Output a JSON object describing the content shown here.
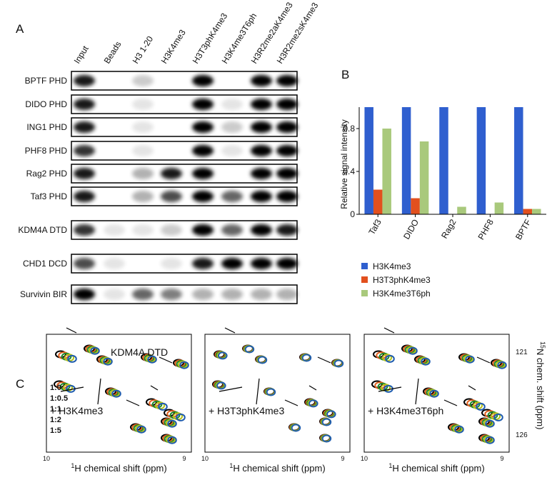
{
  "panel_a": {
    "label": "A",
    "columns": [
      "Input",
      "Beads",
      "H3 1-20",
      "H3K4me3",
      "H3T3phK4me3",
      "H3K4me3T6ph",
      "H3R2me2aK4me3",
      "H3R2me2sK4me3"
    ],
    "rows": [
      "BPTF PHD",
      "DIDO PHD",
      "ING1 PHD",
      "PHF8 PHD",
      "Rag2 PHD",
      "Taf3 PHD",
      "KDM4A DTD",
      "CHD1 DCD",
      "Survivin BIR"
    ]
  },
  "chart_data": {
    "type": "bar",
    "label": "B",
    "y_label": "Relative signal intensity",
    "categories": [
      "Taf3",
      "DIDO",
      "Rag2",
      "PHF8",
      "BPTF"
    ],
    "series": [
      {
        "name": "H3K4me3",
        "color": "#2f5fcf",
        "values": [
          1,
          1,
          1,
          1,
          1
        ]
      },
      {
        "name": "H3T3phK4me3",
        "color": "#e2501e",
        "values": [
          0.23,
          0.15,
          0,
          0,
          0.05
        ]
      },
      {
        "name": "H3K4me3T6ph",
        "color": "#a9c97c",
        "values": [
          0.8,
          0.68,
          0.07,
          0.11,
          0.05
        ]
      }
    ],
    "ylim": [
      0,
      1
    ],
    "yticks": [
      0,
      0.4,
      0.8
    ]
  },
  "panel_c": {
    "label": "C",
    "protein": "KDM4A DTD",
    "peptides": [
      "+ H3K4me3",
      "+ H3T3phK4me3",
      "+ H3K4me3T6ph"
    ],
    "ratios": [
      {
        "text": "1:0",
        "color": "#000000"
      },
      {
        "text": "1:0.5",
        "color": "#e0601e"
      },
      {
        "text": "1:1",
        "color": "#1f8a2a"
      },
      {
        "text": "1:2",
        "color": "#b5c21a"
      },
      {
        "text": "1:5",
        "color": "#1f5cae"
      }
    ],
    "x_ticks": [
      "10",
      "9"
    ],
    "y_ticks": [
      "121",
      "126"
    ],
    "x_label": {
      "sup": "1",
      "text": "H chemical shift (ppm)"
    },
    "y_label": {
      "sup": "15",
      "text": "N chem. shift (ppm)"
    }
  }
}
